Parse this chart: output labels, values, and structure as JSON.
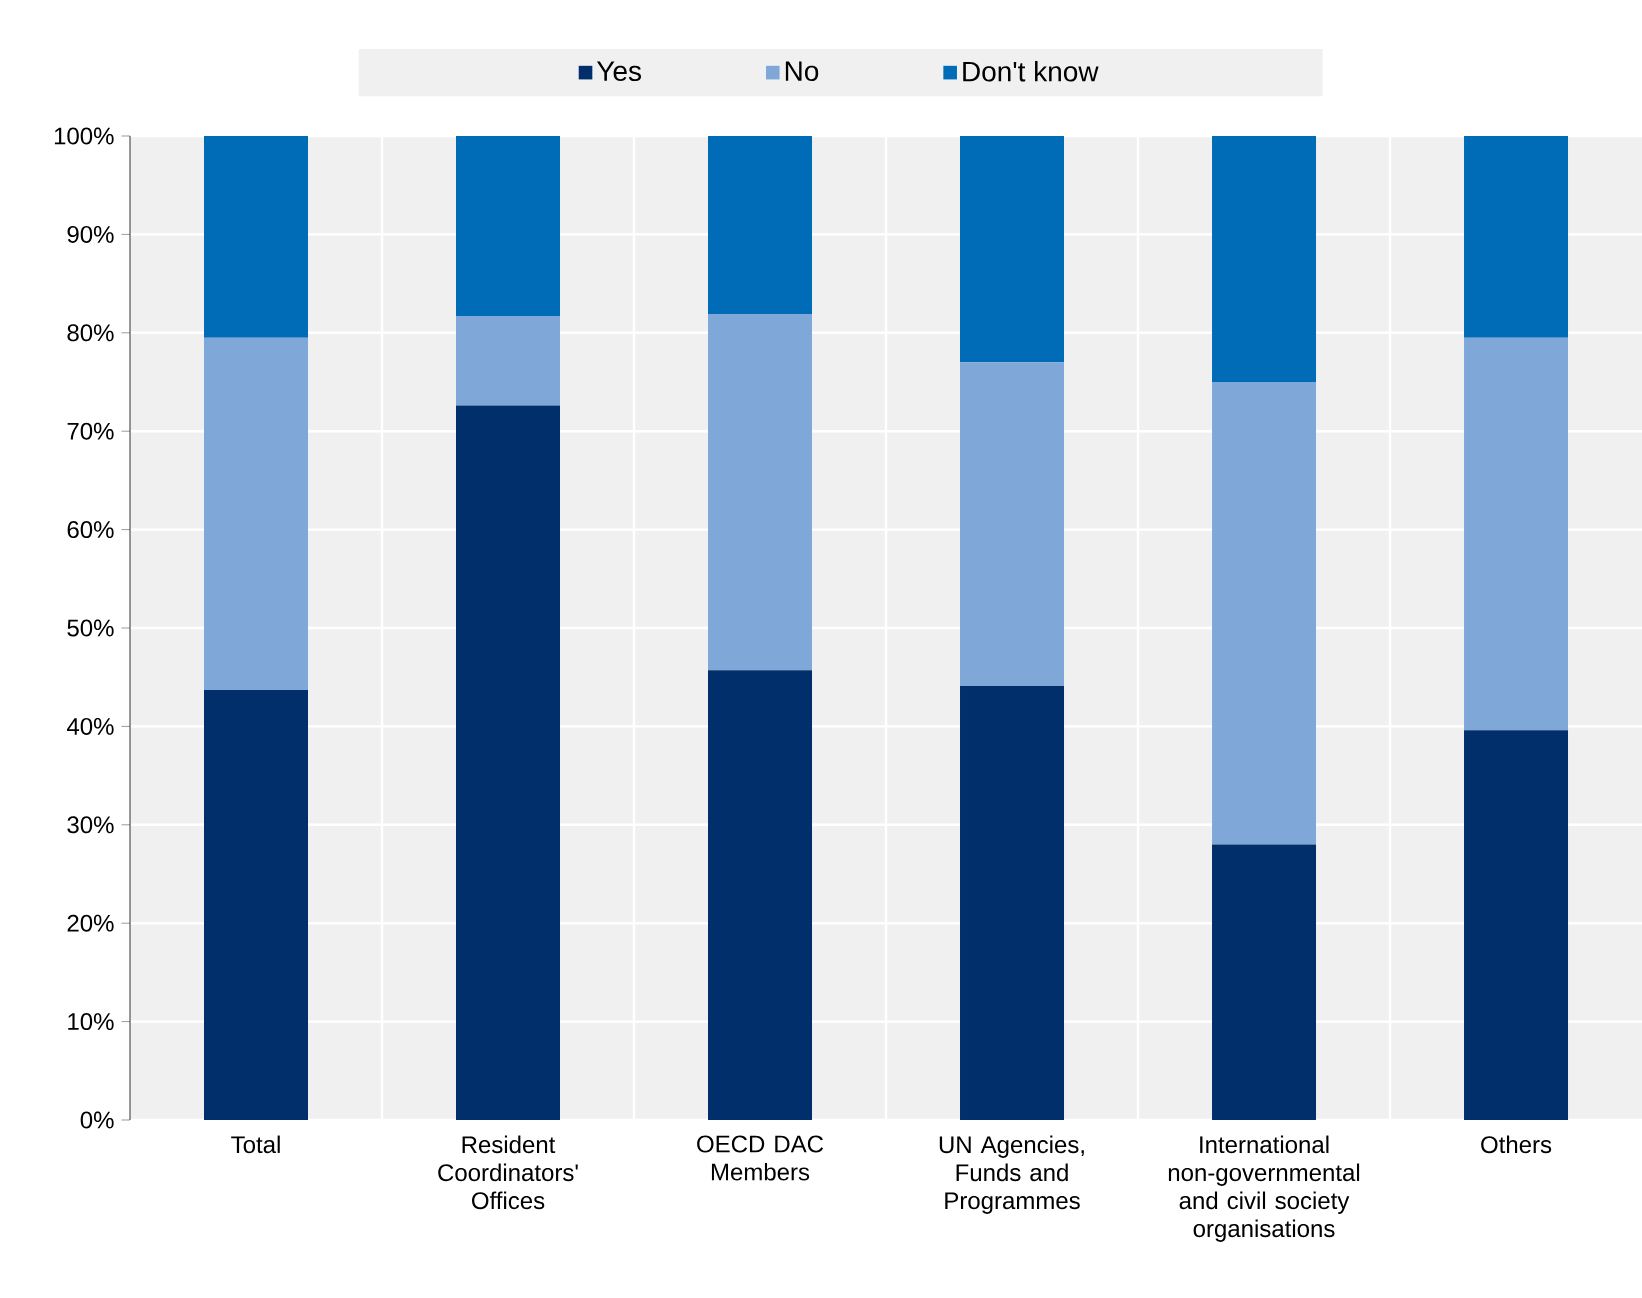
{
  "chart_data": {
    "type": "bar",
    "stacked": true,
    "categories": [
      "Total",
      "Resident Coordinators' Offices",
      "OECD DAC Members",
      "UN Agencies, Funds and Programmes",
      "International non-governmental and civil society organisations",
      "Others"
    ],
    "series": [
      {
        "name": "Yes",
        "color": "#002f6c",
        "values": [
          43.7,
          72.6,
          45.7,
          44.1,
          28.0,
          39.6
        ]
      },
      {
        "name": "No",
        "color": "#7fa8d9",
        "values": [
          35.8,
          9.1,
          36.2,
          32.9,
          47.0,
          39.9
        ]
      },
      {
        "name": "Don't know",
        "color": "#006bb6",
        "values": [
          20.5,
          18.3,
          18.1,
          23.0,
          25.0,
          20.5
        ]
      }
    ],
    "ylim": [
      0,
      100
    ],
    "yticks": [
      {
        "value": 0,
        "label": "0%"
      },
      {
        "value": 10,
        "label": "10%"
      },
      {
        "value": 20,
        "label": "20%"
      },
      {
        "value": 30,
        "label": "30%"
      },
      {
        "value": 40,
        "label": "40%"
      },
      {
        "value": 50,
        "label": "50%"
      },
      {
        "value": 60,
        "label": "60%"
      },
      {
        "value": 70,
        "label": "70%"
      },
      {
        "value": 80,
        "label": "80%"
      },
      {
        "value": 90,
        "label": "90%"
      },
      {
        "value": 100,
        "label": "100%"
      }
    ],
    "grid": true,
    "legend": "top"
  }
}
